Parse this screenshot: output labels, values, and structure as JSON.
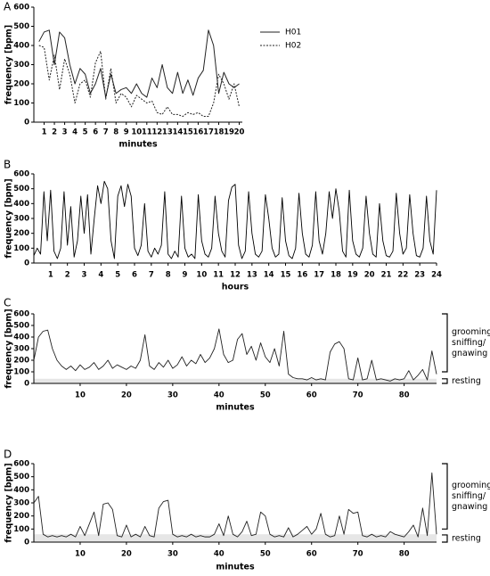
{
  "chart_data": [
    {
      "panel": "A",
      "type": "line",
      "xlabel": "minutes",
      "ylabel": "frequency [bpm]",
      "legend": "upper right",
      "xlim": [
        0,
        20.3
      ],
      "ylim": [
        0,
        600
      ],
      "xticks": [
        1,
        2,
        3,
        4,
        5,
        6,
        7,
        8,
        9,
        10,
        11,
        12,
        13,
        14,
        15,
        16,
        17,
        18,
        19,
        20
      ],
      "yticks": [
        0,
        100,
        200,
        300,
        400,
        500,
        600
      ],
      "x": [
        0.5,
        1,
        1.5,
        2,
        2.5,
        3,
        3.5,
        4,
        4.5,
        5,
        5.5,
        6,
        6.5,
        7,
        7.5,
        8,
        8.5,
        9,
        9.5,
        10,
        10.5,
        11,
        11.5,
        12,
        12.5,
        13,
        13.5,
        14,
        14.5,
        15,
        15.5,
        16,
        16.5,
        17,
        17.5,
        18,
        18.5,
        19,
        19.5,
        20
      ],
      "series": [
        {
          "name": "H01",
          "color": "#222222",
          "style": "solid",
          "values": [
            420,
            470,
            480,
            300,
            470,
            440,
            300,
            200,
            280,
            250,
            150,
            200,
            280,
            130,
            250,
            150,
            170,
            180,
            150,
            200,
            150,
            130,
            230,
            180,
            300,
            180,
            150,
            260,
            150,
            220,
            140,
            230,
            270,
            480,
            400,
            150,
            260,
            200,
            180,
            200
          ]
        },
        {
          "name": "H02",
          "color": "#222222",
          "style": "dotted",
          "values": [
            400,
            390,
            220,
            350,
            170,
            330,
            250,
            100,
            200,
            220,
            130,
            310,
            370,
            120,
            280,
            100,
            150,
            130,
            80,
            140,
            120,
            100,
            110,
            50,
            40,
            80,
            40,
            40,
            30,
            50,
            40,
            50,
            30,
            30,
            100,
            250,
            200,
            120,
            200,
            80
          ]
        }
      ]
    },
    {
      "panel": "B",
      "type": "line",
      "xlabel": "hours",
      "ylabel": "frequency [bpm]",
      "xlim": [
        0,
        24
      ],
      "ylim": [
        0,
        600
      ],
      "xticks": [
        1,
        2,
        3,
        4,
        5,
        6,
        7,
        8,
        9,
        10,
        11,
        12,
        13,
        14,
        15,
        16,
        17,
        18,
        19,
        20,
        21,
        22,
        23,
        24
      ],
      "yticks": [
        0,
        100,
        200,
        300,
        400,
        500,
        600
      ],
      "x": [
        0,
        0.2,
        0.4,
        0.6,
        0.8,
        1,
        1.2,
        1.4,
        1.6,
        1.8,
        2,
        2.2,
        2.4,
        2.6,
        2.8,
        3,
        3.2,
        3.4,
        3.6,
        3.8,
        4,
        4.2,
        4.4,
        4.6,
        4.8,
        5,
        5.2,
        5.4,
        5.6,
        5.8,
        6,
        6.2,
        6.4,
        6.6,
        6.8,
        7,
        7.2,
        7.4,
        7.6,
        7.8,
        8,
        8.2,
        8.4,
        8.6,
        8.8,
        9,
        9.2,
        9.4,
        9.6,
        9.8,
        10,
        10.2,
        10.4,
        10.6,
        10.8,
        11,
        11.2,
        11.4,
        11.6,
        11.8,
        12,
        12.2,
        12.4,
        12.6,
        12.8,
        13,
        13.2,
        13.4,
        13.6,
        13.8,
        14,
        14.2,
        14.4,
        14.6,
        14.8,
        15,
        15.2,
        15.4,
        15.6,
        15.8,
        16,
        16.2,
        16.4,
        16.6,
        16.8,
        17,
        17.2,
        17.4,
        17.6,
        17.8,
        18,
        18.2,
        18.4,
        18.6,
        18.8,
        19,
        19.2,
        19.4,
        19.6,
        19.8,
        20,
        20.2,
        20.4,
        20.6,
        20.8,
        21,
        21.2,
        21.4,
        21.6,
        21.8,
        22,
        22.2,
        22.4,
        22.6,
        22.8,
        23,
        23.2,
        23.4,
        23.6,
        23.8,
        24
      ],
      "series": [
        {
          "color": "#000000",
          "style": "solid",
          "values": [
            50,
            100,
            60,
            480,
            150,
            490,
            80,
            30,
            100,
            480,
            120,
            380,
            40,
            150,
            450,
            200,
            460,
            60,
            300,
            520,
            400,
            550,
            500,
            150,
            30,
            450,
            520,
            380,
            530,
            450,
            100,
            50,
            120,
            400,
            80,
            40,
            100,
            60,
            120,
            480,
            60,
            30,
            80,
            40,
            450,
            100,
            40,
            60,
            30,
            460,
            150,
            60,
            40,
            100,
            450,
            200,
            80,
            40,
            420,
            510,
            530,
            120,
            30,
            80,
            480,
            200,
            60,
            40,
            80,
            460,
            300,
            100,
            40,
            60,
            440,
            150,
            50,
            30,
            100,
            470,
            200,
            60,
            40,
            120,
            480,
            150,
            60,
            200,
            480,
            300,
            500,
            350,
            80,
            40,
            490,
            150,
            60,
            40,
            100,
            450,
            200,
            60,
            40,
            400,
            150,
            50,
            40,
            80,
            470,
            200,
            60,
            100,
            460,
            200,
            50,
            40,
            100,
            450,
            150,
            60,
            490
          ]
        }
      ]
    },
    {
      "panel": "C",
      "type": "line",
      "xlabel": "minutes",
      "ylabel": "frequency [bpm]",
      "xlim": [
        0,
        87
      ],
      "ylim": [
        0,
        600
      ],
      "xticks": [
        10,
        20,
        30,
        40,
        50,
        60,
        70,
        80
      ],
      "yticks": [
        0,
        100,
        200,
        300,
        400,
        500,
        600
      ],
      "band": [
        0,
        40
      ],
      "band_color": "#e6e6e6",
      "annotations": [
        {
          "lines": [
            "grooming/",
            "sniffing/",
            "gnawing"
          ],
          "ylim": [
            100,
            600
          ]
        },
        {
          "lines": [
            "resting"
          ],
          "ylim": [
            0,
            40
          ]
        }
      ],
      "x": [
        0,
        1,
        2,
        3,
        4,
        5,
        6,
        7,
        8,
        9,
        10,
        11,
        12,
        13,
        14,
        15,
        16,
        17,
        18,
        19,
        20,
        21,
        22,
        23,
        24,
        25,
        26,
        27,
        28,
        29,
        30,
        31,
        32,
        33,
        34,
        35,
        36,
        37,
        38,
        39,
        40,
        41,
        42,
        43,
        44,
        45,
        46,
        47,
        48,
        49,
        50,
        51,
        52,
        53,
        54,
        55,
        56,
        57,
        58,
        59,
        60,
        61,
        62,
        63,
        64,
        65,
        66,
        67,
        68,
        69,
        70,
        71,
        72,
        73,
        74,
        75,
        76,
        77,
        78,
        79,
        80,
        81,
        82,
        83,
        84,
        85,
        86,
        87
      ],
      "series": [
        {
          "color": "#222222",
          "style": "solid",
          "values": [
            200,
            400,
            450,
            460,
            300,
            200,
            150,
            120,
            150,
            110,
            160,
            120,
            140,
            180,
            120,
            150,
            200,
            130,
            160,
            140,
            120,
            150,
            130,
            200,
            420,
            150,
            120,
            180,
            140,
            200,
            130,
            160,
            230,
            150,
            200,
            170,
            250,
            180,
            220,
            300,
            470,
            250,
            180,
            200,
            380,
            430,
            250,
            320,
            200,
            350,
            230,
            180,
            300,
            150,
            450,
            80,
            50,
            40,
            40,
            30,
            50,
            30,
            40,
            30,
            270,
            340,
            360,
            300,
            40,
            30,
            220,
            30,
            40,
            200,
            30,
            40,
            30,
            20,
            40,
            30,
            40,
            110,
            30,
            70,
            120,
            30,
            280,
            80
          ]
        }
      ]
    },
    {
      "panel": "D",
      "type": "line",
      "xlabel": "minutes",
      "ylabel": "frequency [bpm]",
      "xlim": [
        0,
        87
      ],
      "ylim": [
        0,
        600
      ],
      "xticks": [
        10,
        20,
        30,
        40,
        50,
        60,
        70,
        80
      ],
      "yticks": [
        0,
        100,
        200,
        300,
        400,
        500,
        600
      ],
      "band": [
        0,
        60
      ],
      "band_color": "#e6e6e6",
      "annotations": [
        {
          "lines": [
            "grooming/",
            "sniffing/",
            "gnawing"
          ],
          "ylim": [
            100,
            600
          ]
        },
        {
          "lines": [
            "resting"
          ],
          "ylim": [
            0,
            55
          ]
        }
      ],
      "x": [
        0,
        1,
        2,
        3,
        4,
        5,
        6,
        7,
        8,
        9,
        10,
        11,
        12,
        13,
        14,
        15,
        16,
        17,
        18,
        19,
        20,
        21,
        22,
        23,
        24,
        25,
        26,
        27,
        28,
        29,
        30,
        31,
        32,
        33,
        34,
        35,
        36,
        37,
        38,
        39,
        40,
        41,
        42,
        43,
        44,
        45,
        46,
        47,
        48,
        49,
        50,
        51,
        52,
        53,
        54,
        55,
        56,
        57,
        58,
        59,
        60,
        61,
        62,
        63,
        64,
        65,
        66,
        67,
        68,
        69,
        70,
        71,
        72,
        73,
        74,
        75,
        76,
        77,
        78,
        79,
        80,
        81,
        82,
        83,
        84,
        85,
        86,
        87
      ],
      "series": [
        {
          "color": "#222222",
          "style": "solid",
          "values": [
            300,
            350,
            60,
            40,
            50,
            40,
            50,
            40,
            60,
            40,
            120,
            50,
            140,
            230,
            50,
            290,
            300,
            250,
            50,
            40,
            130,
            40,
            60,
            40,
            120,
            50,
            40,
            260,
            310,
            320,
            60,
            40,
            50,
            40,
            60,
            40,
            50,
            40,
            40,
            60,
            140,
            50,
            200,
            60,
            40,
            80,
            160,
            50,
            60,
            230,
            200,
            60,
            40,
            50,
            40,
            110,
            40,
            60,
            90,
            120,
            60,
            100,
            220,
            60,
            40,
            50,
            200,
            60,
            250,
            220,
            230,
            50,
            40,
            60,
            40,
            50,
            40,
            80,
            60,
            50,
            40,
            80,
            130,
            40,
            260,
            50,
            530,
            60
          ]
        }
      ]
    }
  ]
}
